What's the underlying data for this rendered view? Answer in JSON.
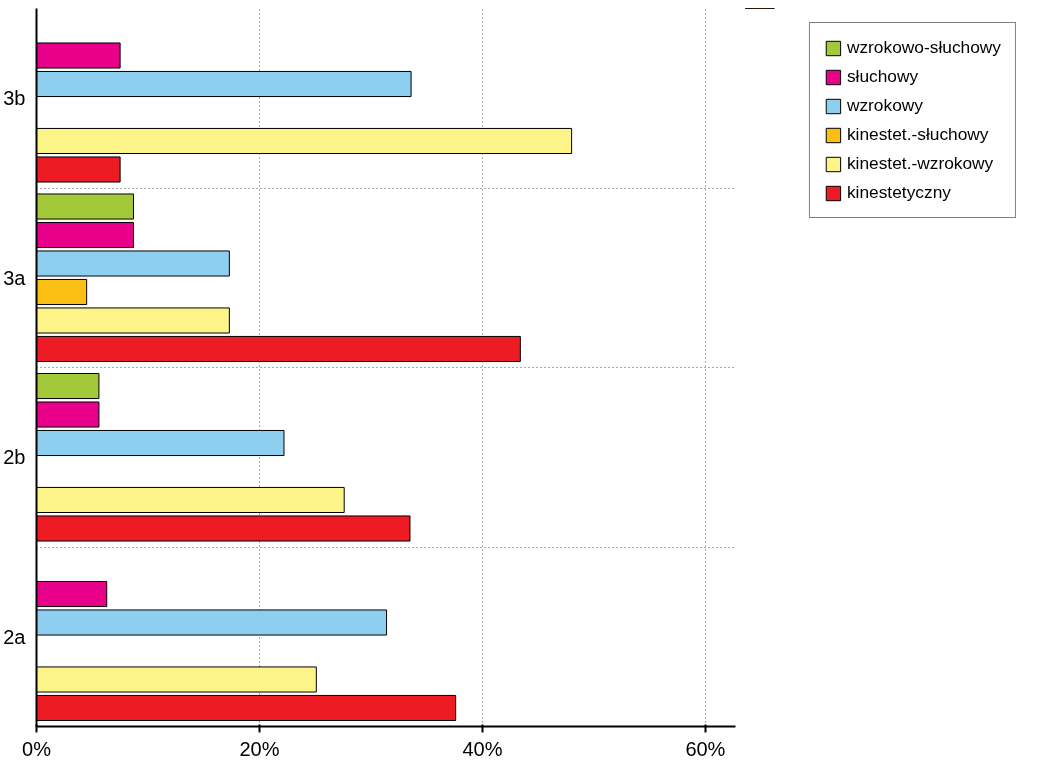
{
  "chart_data": {
    "type": "bar",
    "orientation": "horizontal",
    "categories": [
      "3b",
      "3a",
      "2b",
      "2a"
    ],
    "series": [
      {
        "name": "wzrokowo-słuchowy",
        "color": "#a3c93a",
        "values": [
          null,
          8.7,
          5.6,
          null
        ]
      },
      {
        "name": "słuchowy",
        "color": "#e8008a",
        "values": [
          7.5,
          8.7,
          5.6,
          6.3
        ]
      },
      {
        "name": "wzrokowy",
        "color": "#8ecff0",
        "values": [
          33.6,
          17.3,
          22.2,
          31.4
        ]
      },
      {
        "name": "kinestet.-słuchowy",
        "color": "#fbbf14",
        "values": [
          null,
          4.5,
          null,
          null
        ]
      },
      {
        "name": "kinestet.-wzrokowy",
        "color": "#fdf489",
        "values": [
          48.0,
          17.3,
          27.6,
          25.1
        ]
      },
      {
        "name": "kinestetyczny",
        "color": "#ed1c24",
        "values": [
          7.5,
          43.4,
          33.5,
          37.6
        ]
      }
    ],
    "xlim": [
      0,
      62.7
    ],
    "xticks": [
      {
        "value": 0,
        "label": "0%"
      },
      {
        "value": 20,
        "label": "20%"
      },
      {
        "value": 40,
        "label": "40%"
      },
      {
        "value": 60,
        "label": "60%"
      }
    ],
    "grid": true,
    "legend": "top right"
  }
}
